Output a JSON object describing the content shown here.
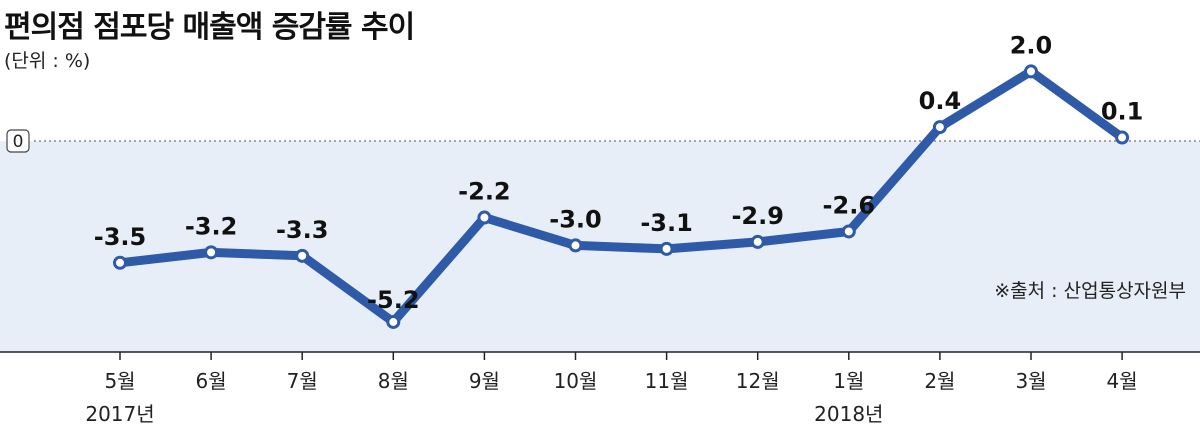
{
  "title": "편의점 점포당 매출액 증감률 추이",
  "unit": "(단위 : %)",
  "source": "※출처 : 산업통상자원부",
  "colors": {
    "line": "#2e5aa8",
    "band": "#e8eef7",
    "zero_line": "#888888",
    "text": "#111111"
  },
  "chart_data": {
    "type": "line",
    "categories": [
      "5월",
      "6월",
      "7월",
      "8월",
      "9월",
      "10월",
      "11월",
      "12월",
      "1월",
      "2월",
      "3월",
      "4월"
    ],
    "year_labels": [
      "2017년",
      "",
      "",
      "",
      "",
      "",
      "",
      "",
      "2018년",
      "",
      "",
      ""
    ],
    "values": [
      -3.5,
      -3.2,
      -3.3,
      -5.2,
      -2.2,
      -3.0,
      -3.1,
      -2.9,
      -2.6,
      0.4,
      2.0,
      0.1
    ],
    "value_labels": [
      "-3.5",
      "-3.2",
      "-3.3",
      "-5.2",
      "-2.2",
      "-3.0",
      "-3.1",
      "-2.9",
      "-2.6",
      "0.4",
      "2.0",
      "0.1"
    ],
    "zero_label": "0",
    "ylim": [
      -6.0,
      2.5
    ],
    "grid": false,
    "legend": "none"
  }
}
